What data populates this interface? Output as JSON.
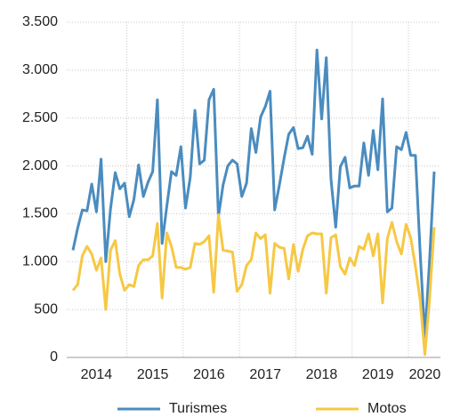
{
  "chart_data": {
    "type": "line",
    "categories": [
      null,
      null,
      null,
      null,
      null,
      "2014",
      null,
      null,
      null,
      null,
      null,
      null,
      null,
      null,
      null,
      null,
      null,
      "2015",
      null,
      null,
      null,
      null,
      null,
      null,
      null,
      null,
      null,
      null,
      null,
      "2016",
      null,
      null,
      null,
      null,
      null,
      null,
      null,
      null,
      null,
      null,
      null,
      "2017",
      null,
      null,
      null,
      null,
      null,
      null,
      null,
      null,
      null,
      null,
      null,
      "2018",
      null,
      null,
      null,
      null,
      null,
      null,
      null,
      null,
      null,
      null,
      null,
      "2019",
      null,
      null,
      null,
      null,
      null,
      null,
      null,
      null,
      null,
      "2020",
      null,
      null
    ],
    "series": [
      {
        "name": "Turismes",
        "color": "#4a8cbf",
        "values": [
          1120,
          1350,
          1540,
          1530,
          1810,
          1520,
          2070,
          1000,
          1550,
          1930,
          1760,
          1820,
          1470,
          1650,
          2010,
          1680,
          1830,
          1940,
          2690,
          1190,
          1580,
          1940,
          1900,
          2200,
          1560,
          1880,
          2580,
          2020,
          2060,
          2690,
          2800,
          1470,
          1800,
          2000,
          2060,
          2020,
          1680,
          1820,
          2390,
          2140,
          2510,
          2620,
          2780,
          1540,
          1800,
          2080,
          2330,
          2400,
          2180,
          2190,
          2310,
          2120,
          3210,
          2490,
          3130,
          1860,
          1360,
          1990,
          2090,
          1770,
          1790,
          1790,
          2240,
          1900,
          2370,
          1960,
          2700,
          1520,
          1560,
          2200,
          2170,
          2350,
          2110,
          2110,
          1100,
          210,
          1000,
          1940
        ]
      },
      {
        "name": "Motos",
        "color": "#f6c843",
        "values": [
          700,
          760,
          1060,
          1160,
          1080,
          910,
          1040,
          500,
          1120,
          1220,
          870,
          700,
          760,
          740,
          960,
          1020,
          1020,
          1060,
          1400,
          620,
          1300,
          1160,
          940,
          940,
          920,
          940,
          1190,
          1180,
          1210,
          1270,
          680,
          1490,
          1120,
          1110,
          1100,
          690,
          760,
          960,
          1020,
          1300,
          1240,
          1280,
          670,
          1190,
          1150,
          1140,
          820,
          1180,
          900,
          1130,
          1270,
          1300,
          1290,
          1290,
          670,
          1250,
          1280,
          950,
          870,
          1040,
          960,
          1160,
          1130,
          1290,
          1060,
          1290,
          570,
          1240,
          1410,
          1210,
          1080,
          1390,
          1250,
          950,
          600,
          30,
          600,
          1360
        ]
      }
    ],
    "ylim": [
      0,
      3500
    ],
    "yticks": [
      0,
      500,
      {
        "value": 1000,
        "label": "1.000"
      },
      {
        "value": 1500,
        "label": "1.500"
      },
      {
        "value": 2000,
        "label": "2.000"
      },
      {
        "value": 2500,
        "label": "2.500"
      },
      {
        "value": 3000,
        "label": "3.000"
      },
      {
        "value": 3500,
        "label": "3.500"
      }
    ],
    "grid": true
  }
}
